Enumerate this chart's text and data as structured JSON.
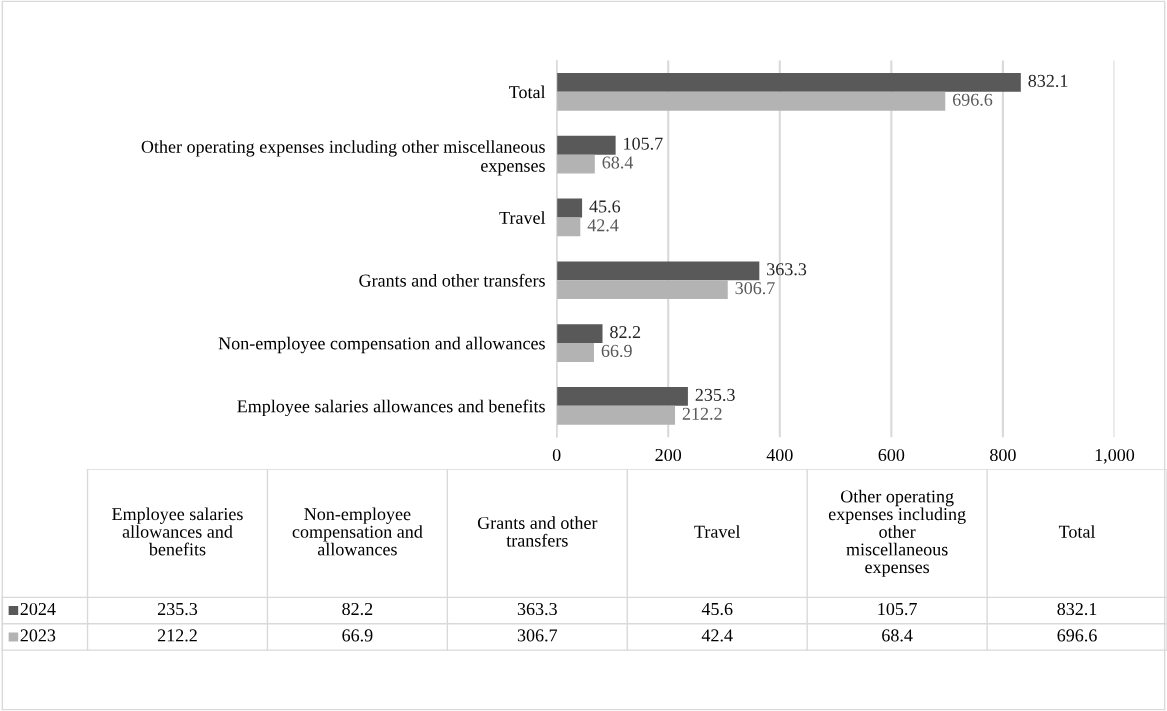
{
  "chart_data": [
    {
      "type": "bar",
      "orientation": "horizontal",
      "categories": [
        "Total",
        "Other operating expenses including other miscellaneous expenses",
        "Travel",
        "Grants and other transfers",
        "Non-employee compensation and allowances",
        "Employee salaries allowances and benefits"
      ],
      "series": [
        {
          "color": "#595959",
          "values": [
            832.1,
            105.7,
            45.6,
            363.3,
            82.2,
            235.3
          ]
        },
        {
          "color": "#b3b3b3",
          "values": [
            696.6,
            68.4,
            42.4,
            306.7,
            66.9,
            212.2
          ]
        }
      ],
      "xlim": [
        0,
        1000
      ],
      "xticks": [
        0,
        200,
        400,
        600,
        800,
        {
          "value": 1000,
          "label": "1,000"
        }
      ],
      "grid": "x",
      "data_labels": true
    },
    {
      "type": "other",
      "categories": [
        "Employee salaries allowances and benefits",
        "Non-employee compensation and allowances",
        "Grants and other transfers",
        "Travel",
        "Other operating expenses including other miscellaneous expenses",
        "Total"
      ],
      "series": [
        {
          "name": "2024",
          "color": "#595959",
          "values": [
            235.3,
            82.2,
            363.3,
            45.6,
            105.7,
            832.1
          ]
        },
        {
          "name": "2023",
          "color": "#b3b3b3",
          "values": [
            212.2,
            66.9,
            306.7,
            42.4,
            68.4,
            696.6
          ]
        }
      ],
      "legend": "left",
      "data_labels": true
    }
  ]
}
